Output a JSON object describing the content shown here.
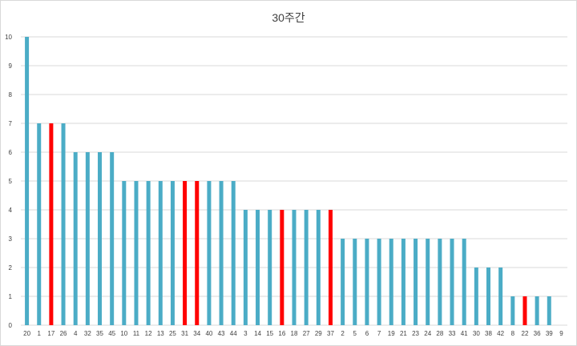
{
  "chart_data": {
    "type": "bar",
    "title": "30주간",
    "xlabel": "",
    "ylabel": "",
    "ylim": [
      0,
      10
    ],
    "yticks": [
      0,
      1,
      2,
      3,
      4,
      5,
      6,
      7,
      8,
      9,
      10
    ],
    "grid": true,
    "legend": "none",
    "categories": [
      "20",
      "1",
      "17",
      "26",
      "4",
      "32",
      "35",
      "45",
      "10",
      "11",
      "12",
      "13",
      "25",
      "31",
      "34",
      "40",
      "43",
      "44",
      "3",
      "14",
      "15",
      "16",
      "18",
      "27",
      "29",
      "37",
      "2",
      "5",
      "6",
      "7",
      "19",
      "21",
      "23",
      "24",
      "28",
      "33",
      "41",
      "30",
      "38",
      "42",
      "8",
      "22",
      "36",
      "39",
      "9"
    ],
    "values": [
      10,
      7,
      7,
      7,
      6,
      6,
      6,
      6,
      5,
      5,
      5,
      5,
      5,
      5,
      5,
      5,
      5,
      5,
      4,
      4,
      4,
      4,
      4,
      4,
      4,
      4,
      3,
      3,
      3,
      3,
      3,
      3,
      3,
      3,
      3,
      3,
      3,
      2,
      2,
      2,
      1,
      1,
      1,
      1,
      0
    ],
    "highlighted": [
      "17",
      "31",
      "34",
      "16",
      "37",
      "22"
    ],
    "colors": {
      "normal": "#4bacc6",
      "highlight": "#ff0000",
      "grid": "#d9d9d9",
      "text": "#404040"
    }
  }
}
